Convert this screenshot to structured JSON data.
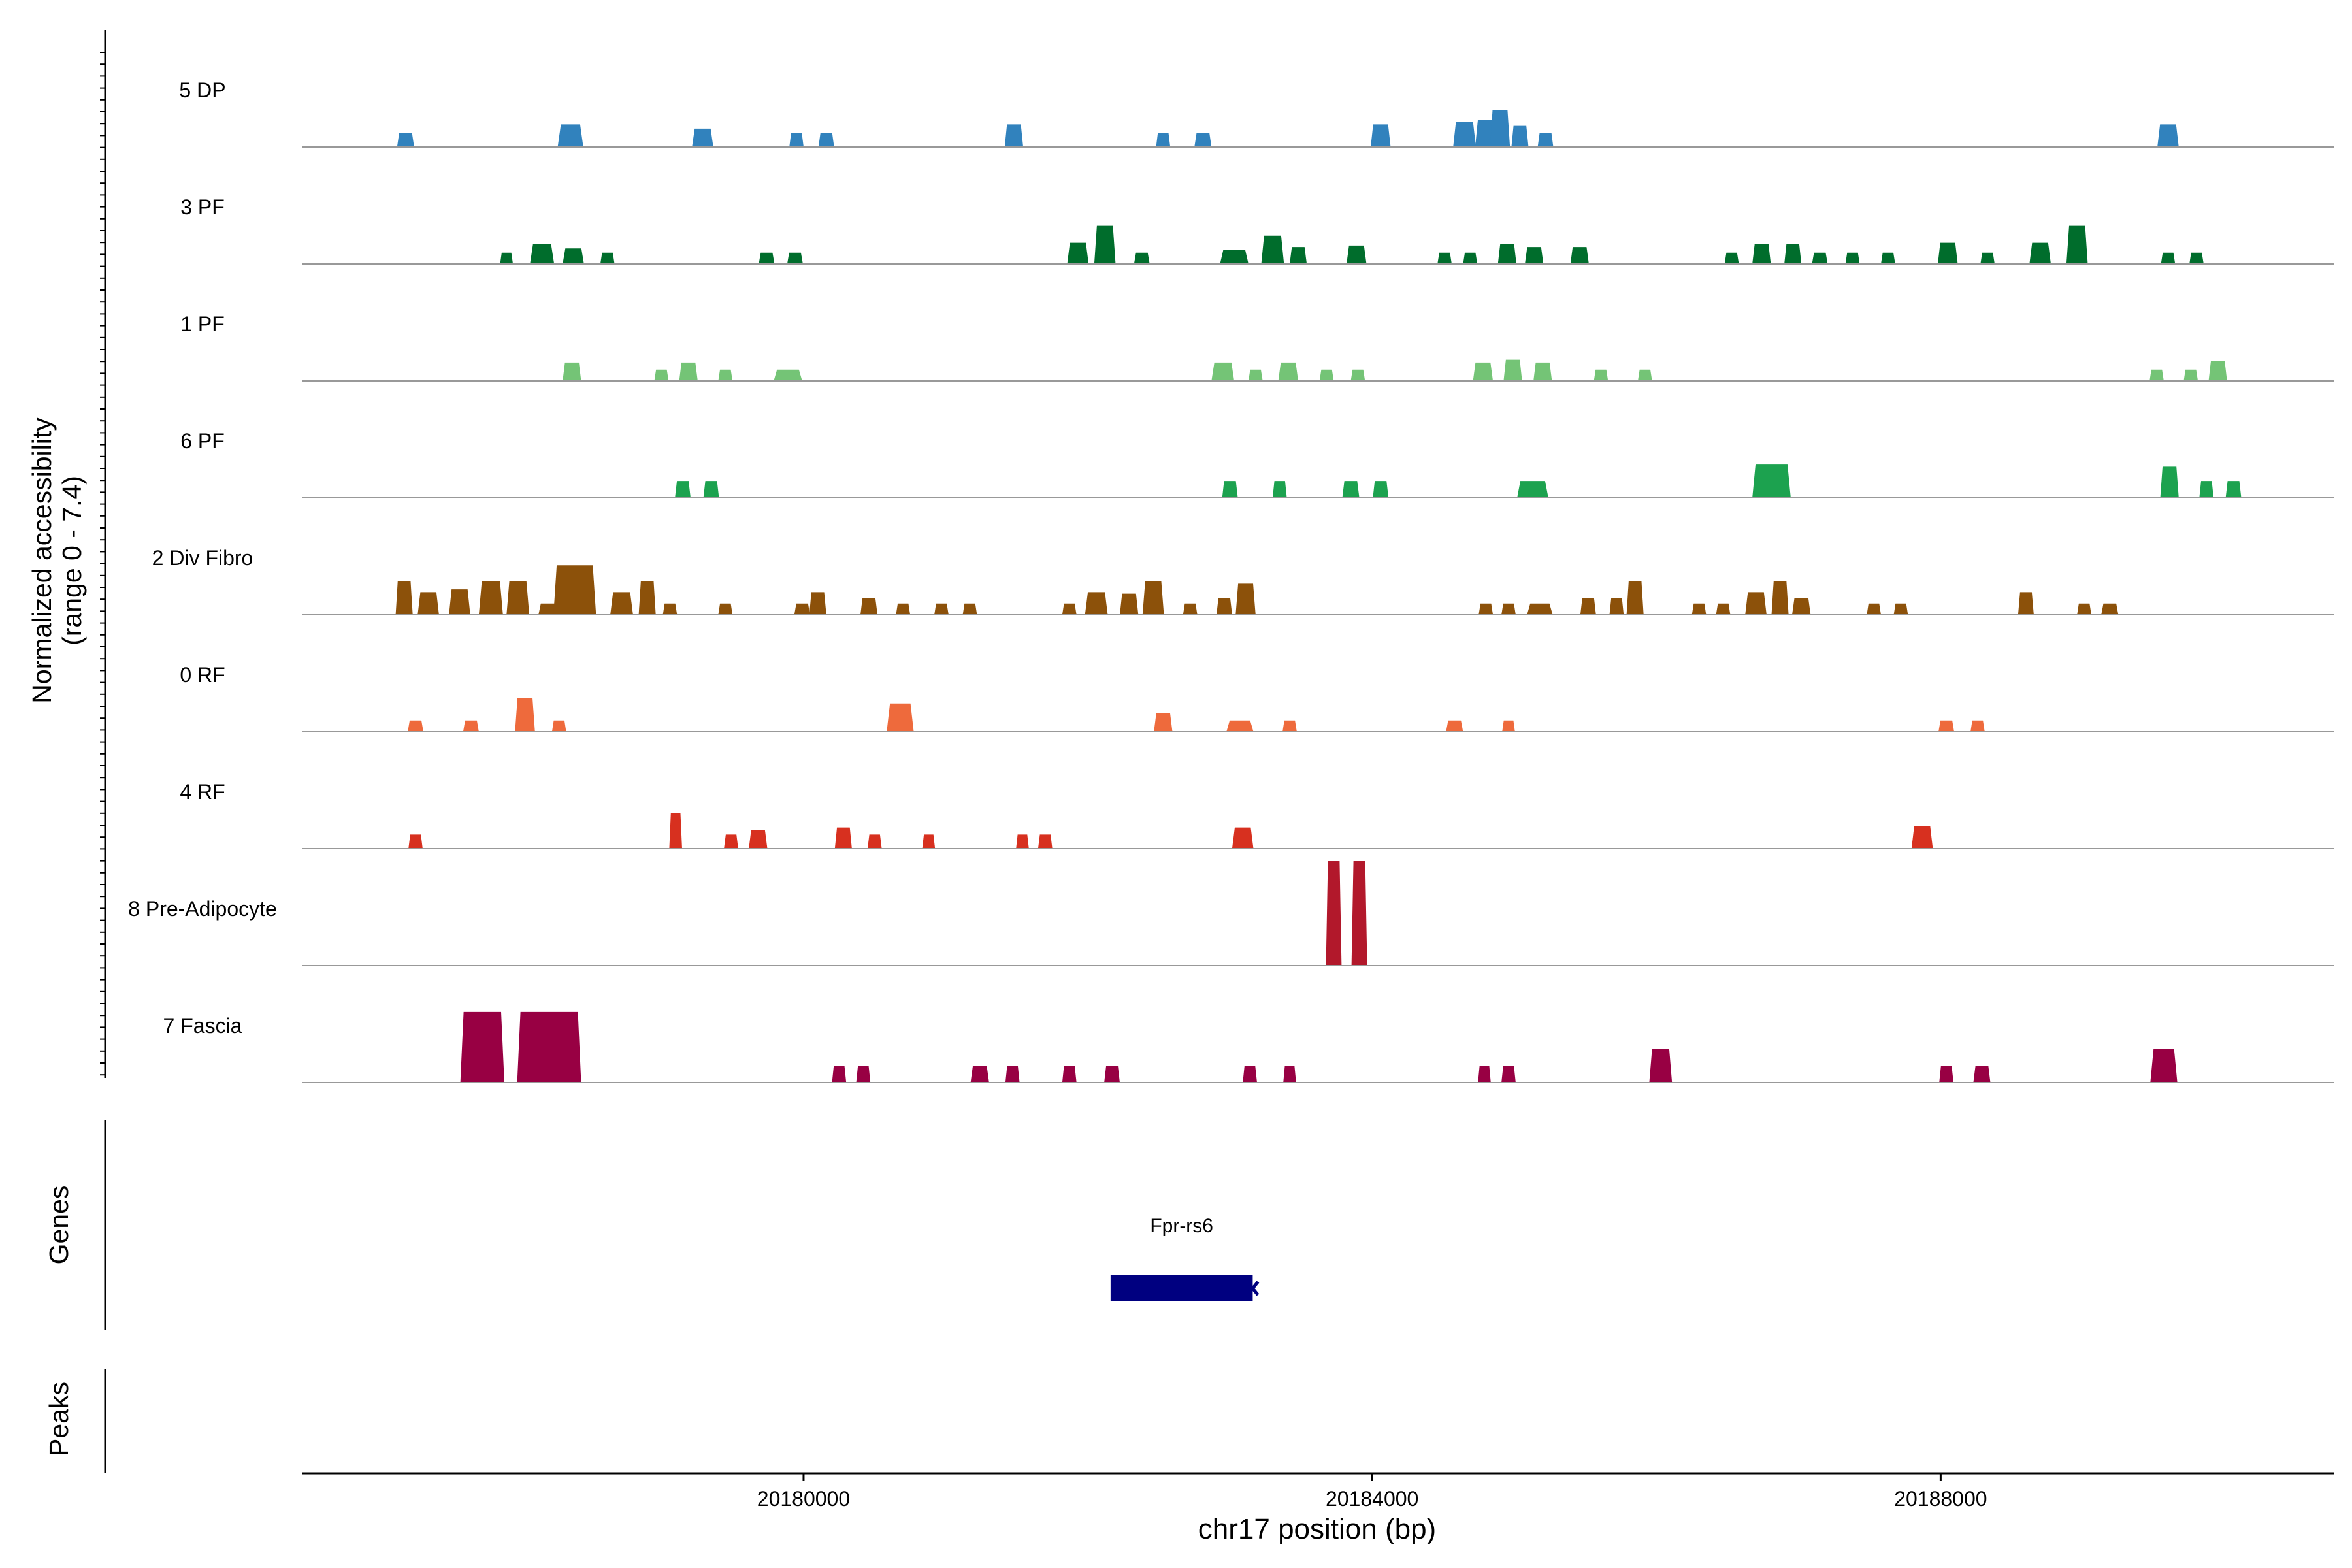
{
  "chart_data": {
    "type": "area",
    "title": "",
    "xlabel": "chr17 position (bp)",
    "ylabel_line1": "Normalized accessibility",
    "ylabel_line2": "(range 0 - 7.4)",
    "yrange": [
      0,
      7.4
    ],
    "xlim": [
      20176470,
      20190770
    ],
    "xticks": [
      20180000,
      20184000,
      20188000
    ],
    "xtick_labels": [
      "20180000",
      "20184000",
      "20188000"
    ],
    "colors": {
      "dp": "#3182bd",
      "pf3": "#006d2c",
      "pf1": "#74c476",
      "pf6": "#1ca24f",
      "divfibro": "#8c510a",
      "rf0": "#ee6a3c",
      "rf4": "#d7301f",
      "preadipo": "#b2182b",
      "fascia": "#980043",
      "gene": "#000080",
      "axis": "#000000",
      "baseline": "#999999"
    },
    "series": [
      {
        "name": "5 DP",
        "color_key": "dp",
        "peaks": [
          [
            20177200,
            120,
            1.0
          ],
          [
            20178360,
            180,
            1.6
          ],
          [
            20179290,
            150,
            1.3
          ],
          [
            20179950,
            100,
            1.0
          ],
          [
            20180160,
            110,
            1.0
          ],
          [
            20181480,
            130,
            1.6
          ],
          [
            20182530,
            100,
            1.0
          ],
          [
            20182810,
            120,
            1.0
          ],
          [
            20184060,
            140,
            1.6
          ],
          [
            20184650,
            160,
            1.8
          ],
          [
            20184800,
            150,
            1.9
          ],
          [
            20184900,
            140,
            2.6
          ],
          [
            20185040,
            120,
            1.5
          ],
          [
            20185220,
            110,
            1.0
          ],
          [
            20189600,
            150,
            1.6
          ]
        ]
      },
      {
        "name": "3 PF",
        "color_key": "pf3",
        "peaks": [
          [
            20177910,
            90,
            0.8
          ],
          [
            20178160,
            170,
            1.4
          ],
          [
            20178380,
            150,
            1.1
          ],
          [
            20178620,
            100,
            0.8
          ],
          [
            20179740,
            110,
            0.8
          ],
          [
            20179940,
            110,
            0.8
          ],
          [
            20181930,
            150,
            1.5
          ],
          [
            20182120,
            150,
            2.7
          ],
          [
            20182380,
            110,
            0.8
          ],
          [
            20183030,
            200,
            1.0
          ],
          [
            20183300,
            160,
            2.0
          ],
          [
            20183480,
            120,
            1.2
          ],
          [
            20183890,
            140,
            1.3
          ],
          [
            20184510,
            100,
            0.8
          ],
          [
            20184690,
            100,
            0.8
          ],
          [
            20184950,
            130,
            1.4
          ],
          [
            20185140,
            130,
            1.2
          ],
          [
            20185460,
            130,
            1.2
          ],
          [
            20186530,
            100,
            0.8
          ],
          [
            20186740,
            130,
            1.4
          ],
          [
            20186960,
            120,
            1.4
          ],
          [
            20187150,
            110,
            0.8
          ],
          [
            20187380,
            100,
            0.8
          ],
          [
            20187630,
            100,
            0.8
          ],
          [
            20188050,
            140,
            1.5
          ],
          [
            20188330,
            100,
            0.8
          ],
          [
            20188700,
            150,
            1.5
          ],
          [
            20188960,
            150,
            2.7
          ],
          [
            20189600,
            100,
            0.8
          ],
          [
            20189800,
            100,
            0.8
          ]
        ]
      },
      {
        "name": "1 PF",
        "color_key": "pf1",
        "peaks": [
          [
            20178370,
            130,
            1.3
          ],
          [
            20179000,
            100,
            0.8
          ],
          [
            20179190,
            130,
            1.3
          ],
          [
            20179450,
            100,
            0.8
          ],
          [
            20179890,
            200,
            0.8
          ],
          [
            20182950,
            160,
            1.3
          ],
          [
            20183180,
            100,
            0.8
          ],
          [
            20183410,
            140,
            1.3
          ],
          [
            20183680,
            100,
            0.8
          ],
          [
            20183900,
            100,
            0.8
          ],
          [
            20184780,
            140,
            1.3
          ],
          [
            20184990,
            130,
            1.5
          ],
          [
            20185200,
            130,
            1.3
          ],
          [
            20185610,
            100,
            0.8
          ],
          [
            20185920,
            100,
            0.8
          ],
          [
            20189520,
            100,
            0.8
          ],
          [
            20189760,
            100,
            0.8
          ],
          [
            20189950,
            130,
            1.4
          ]
        ]
      },
      {
        "name": "6 PF",
        "color_key": "pf6",
        "peaks": [
          [
            20179150,
            110,
            1.2
          ],
          [
            20179350,
            110,
            1.2
          ],
          [
            20183000,
            110,
            1.2
          ],
          [
            20183350,
            100,
            1.2
          ],
          [
            20183850,
            120,
            1.2
          ],
          [
            20184060,
            110,
            1.2
          ],
          [
            20185130,
            220,
            1.2
          ],
          [
            20186810,
            270,
            2.4
          ],
          [
            20189610,
            130,
            2.2
          ],
          [
            20189870,
            100,
            1.2
          ],
          [
            20190060,
            110,
            1.2
          ]
        ]
      },
      {
        "name": "2 Div Fibro",
        "color_key": "divfibro",
        "peaks": [
          [
            20177190,
            120,
            2.4
          ],
          [
            20177360,
            150,
            1.6
          ],
          [
            20177580,
            150,
            1.8
          ],
          [
            20177800,
            170,
            2.4
          ],
          [
            20177990,
            160,
            2.4
          ],
          [
            20178200,
            130,
            0.8
          ],
          [
            20178390,
            300,
            3.5
          ],
          [
            20178720,
            160,
            1.6
          ],
          [
            20178900,
            120,
            2.4
          ],
          [
            20179060,
            100,
            0.8
          ],
          [
            20179450,
            100,
            0.8
          ],
          [
            20179990,
            110,
            0.8
          ],
          [
            20180100,
            120,
            1.6
          ],
          [
            20180460,
            120,
            1.2
          ],
          [
            20180700,
            100,
            0.8
          ],
          [
            20180970,
            100,
            0.8
          ],
          [
            20181170,
            100,
            0.8
          ],
          [
            20181870,
            100,
            0.8
          ],
          [
            20182060,
            160,
            1.6
          ],
          [
            20182290,
            130,
            1.5
          ],
          [
            20182460,
            150,
            2.4
          ],
          [
            20182720,
            100,
            0.8
          ],
          [
            20182960,
            110,
            1.2
          ],
          [
            20183110,
            140,
            2.2
          ],
          [
            20184800,
            100,
            0.8
          ],
          [
            20184960,
            100,
            0.8
          ],
          [
            20185180,
            180,
            0.8
          ],
          [
            20185520,
            110,
            1.2
          ],
          [
            20185720,
            100,
            1.2
          ],
          [
            20185850,
            120,
            2.4
          ],
          [
            20186300,
            100,
            0.8
          ],
          [
            20186470,
            100,
            0.8
          ],
          [
            20186700,
            150,
            1.6
          ],
          [
            20186870,
            120,
            2.4
          ],
          [
            20187020,
            130,
            1.2
          ],
          [
            20187530,
            100,
            0.8
          ],
          [
            20187720,
            100,
            0.8
          ],
          [
            20188600,
            110,
            1.6
          ],
          [
            20189010,
            100,
            0.8
          ],
          [
            20189190,
            120,
            0.8
          ]
        ]
      },
      {
        "name": "0 RF",
        "color_key": "rf0",
        "peaks": [
          [
            20177270,
            110,
            0.8
          ],
          [
            20177660,
            110,
            0.8
          ],
          [
            20178040,
            140,
            2.4
          ],
          [
            20178280,
            100,
            0.8
          ],
          [
            20180680,
            190,
            2.0
          ],
          [
            20182530,
            130,
            1.3
          ],
          [
            20183070,
            190,
            0.8
          ],
          [
            20183420,
            100,
            0.8
          ],
          [
            20184580,
            120,
            0.8
          ],
          [
            20184960,
            90,
            0.8
          ],
          [
            20188040,
            110,
            0.8
          ],
          [
            20188260,
            100,
            0.8
          ]
        ]
      },
      {
        "name": "4 RF",
        "color_key": "rf4",
        "peaks": [
          [
            20177270,
            100,
            1.0
          ],
          [
            20179100,
            90,
            2.5
          ],
          [
            20179490,
            100,
            1.0
          ],
          [
            20179680,
            130,
            1.3
          ],
          [
            20180280,
            120,
            1.5
          ],
          [
            20180500,
            100,
            1.0
          ],
          [
            20180880,
            90,
            1.0
          ],
          [
            20181540,
            90,
            1.0
          ],
          [
            20181700,
            100,
            1.0
          ],
          [
            20183090,
            150,
            1.5
          ],
          [
            20187870,
            150,
            1.6
          ]
        ]
      },
      {
        "name": "8 Pre-Adipocyte",
        "color_key": "preadipo",
        "peaks": [
          [
            20183730,
            110,
            7.4
          ],
          [
            20183910,
            110,
            7.4
          ]
        ]
      },
      {
        "name": "7 Fascia",
        "color_key": "fascia",
        "peaks": [
          [
            20177740,
            310,
            5.0
          ],
          [
            20178210,
            450,
            5.0
          ],
          [
            20180250,
            100,
            1.2
          ],
          [
            20180420,
            100,
            1.2
          ],
          [
            20181240,
            130,
            1.2
          ],
          [
            20181470,
            100,
            1.2
          ],
          [
            20181870,
            100,
            1.2
          ],
          [
            20182170,
            110,
            1.2
          ],
          [
            20183140,
            100,
            1.2
          ],
          [
            20183420,
            90,
            1.2
          ],
          [
            20184790,
            90,
            1.2
          ],
          [
            20184960,
            100,
            1.2
          ],
          [
            20186030,
            160,
            2.4
          ],
          [
            20188040,
            100,
            1.2
          ],
          [
            20188290,
            120,
            1.2
          ],
          [
            20189570,
            190,
            2.4
          ]
        ]
      }
    ],
    "genes_track": {
      "label": "Genes",
      "gene_name": "Fpr-rs6",
      "start": 20182160,
      "end": 20183160,
      "strand": "-"
    },
    "peaks_track": {
      "label": "Peaks"
    }
  }
}
